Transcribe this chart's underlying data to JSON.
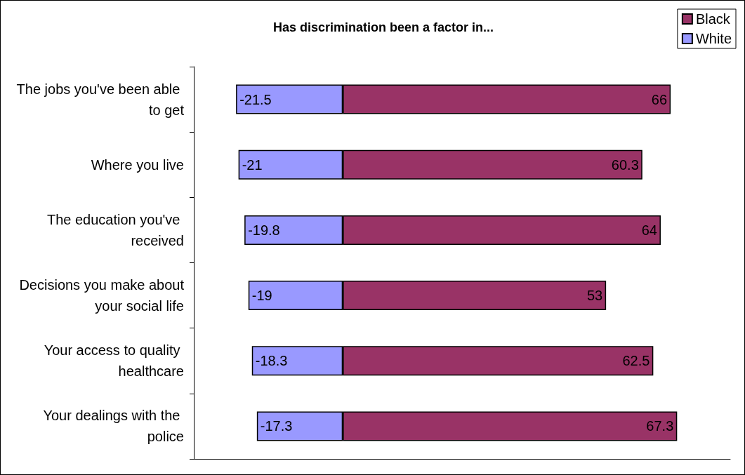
{
  "chart_data": {
    "type": "bar",
    "orientation": "horizontal",
    "stacked": true,
    "title": "Has discrimination been a factor in...",
    "categories": [
      "The jobs you've been able to get",
      "Where you live",
      "The education you've received",
      "Decisions you make about your social life",
      "Your access to quality healthcare",
      "Your dealings with the police"
    ],
    "series": [
      {
        "name": "Black",
        "color": "#993366",
        "values": [
          66,
          60.3,
          64,
          53,
          62.5,
          67.3
        ]
      },
      {
        "name": "White",
        "color": "#9999ff",
        "values": [
          -21.5,
          -21,
          -19.8,
          -19,
          -18.3,
          -17.3
        ]
      }
    ],
    "xlim": [
      -30,
      78
    ],
    "data_labels": true,
    "legend": "top right",
    "tick_labels": "y"
  }
}
